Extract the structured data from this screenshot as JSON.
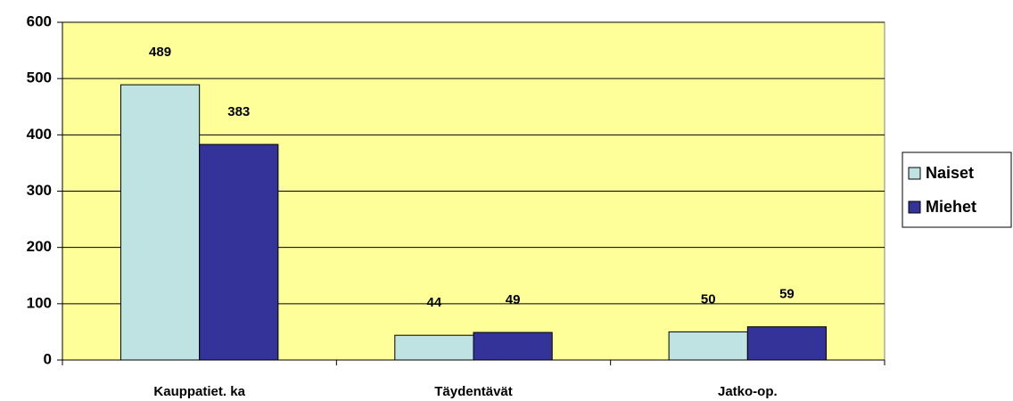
{
  "chart_data": {
    "type": "bar",
    "categories": [
      "Kauppatiet. ka",
      "Täydentävät",
      "Jatko-op."
    ],
    "series": [
      {
        "name": "Naiset",
        "color": "#bfe3e3",
        "values": [
          489,
          44,
          50
        ]
      },
      {
        "name": "Miehet",
        "color": "#333399",
        "values": [
          383,
          49,
          59
        ]
      }
    ],
    "ylim": [
      0,
      600
    ],
    "yticks": [
      0,
      100,
      200,
      300,
      400,
      500,
      600
    ],
    "grid": true,
    "legend": "right",
    "background": "#ffff99"
  }
}
